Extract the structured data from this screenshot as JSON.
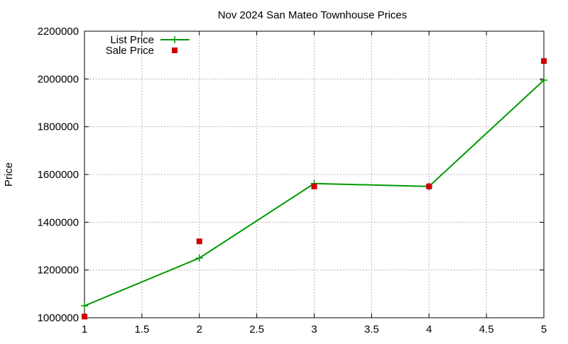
{
  "chart_data": {
    "type": "line",
    "title": "Nov 2024 San Mateo Townhouse Prices",
    "xlabel": "",
    "ylabel": "Price",
    "xlim": [
      1,
      5
    ],
    "ylim": [
      1000000,
      2200000
    ],
    "x_ticks": [
      "1",
      "1.5",
      "2",
      "2.5",
      "3",
      "3.5",
      "4",
      "4.5",
      "5"
    ],
    "x_tick_values": [
      1,
      1.5,
      2,
      2.5,
      3,
      3.5,
      4,
      4.5,
      5
    ],
    "y_ticks": [
      "1000000",
      "1200000",
      "1400000",
      "1600000",
      "1800000",
      "2000000",
      "2200000"
    ],
    "y_tick_values": [
      1000000,
      1200000,
      1400000,
      1600000,
      1800000,
      2000000,
      2200000
    ],
    "grid": true,
    "legend_position": "top-left",
    "series": [
      {
        "name": "List Price",
        "style": "linespoints",
        "marker": "plus",
        "color": "#009900",
        "x": [
          1,
          2,
          3,
          4,
          5
        ],
        "y": [
          1050000,
          1250000,
          1562000,
          1550000,
          1995000
        ]
      },
      {
        "name": "Sale Price",
        "style": "points",
        "marker": "square",
        "color": "#cc0000",
        "x": [
          1,
          2,
          3,
          4,
          5
        ],
        "y": [
          1005000,
          1320000,
          1550000,
          1550000,
          2075000
        ]
      }
    ]
  }
}
